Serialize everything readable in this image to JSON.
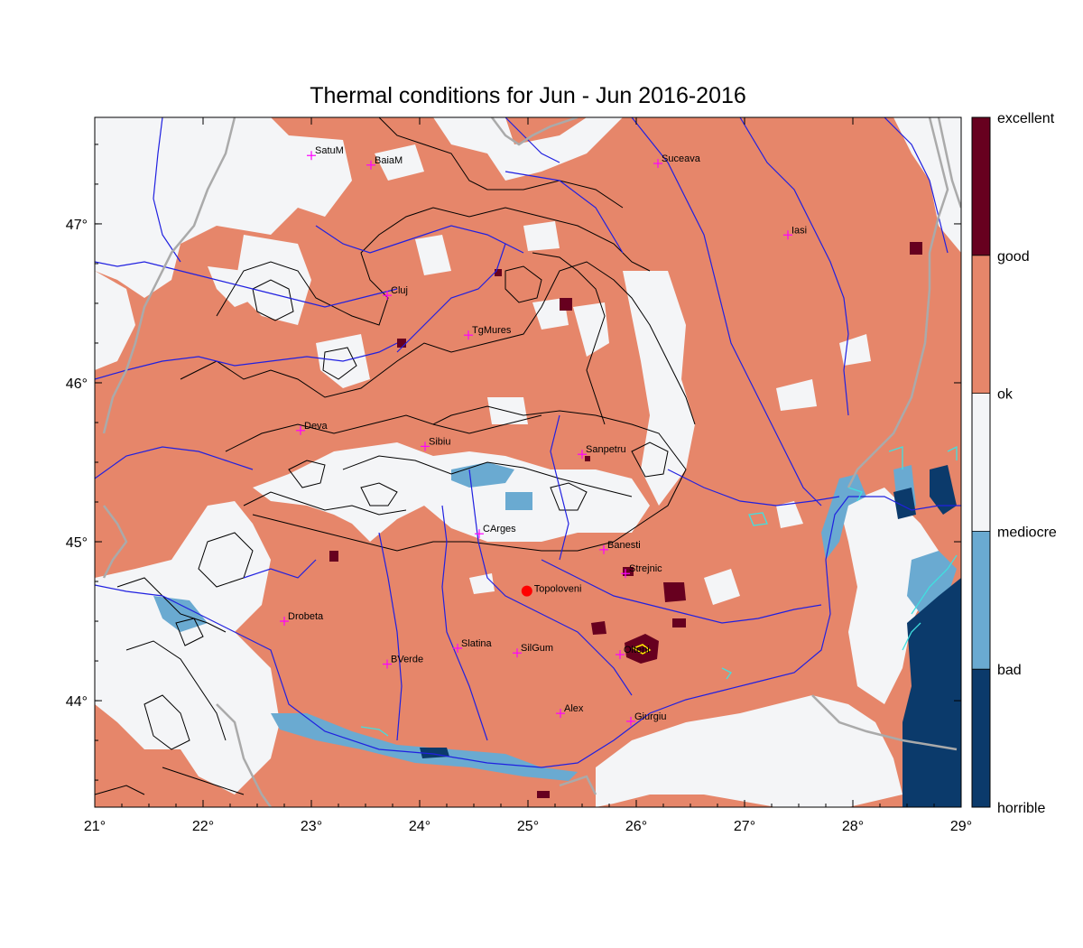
{
  "title": "Thermal conditions for Jun - Jun  2016-2016",
  "map": {
    "lon_range": [
      21,
      29
    ],
    "lat_range": [
      43.33,
      47.67
    ],
    "x_ticks": [
      "21°",
      "22°",
      "23°",
      "24°",
      "25°",
      "26°",
      "27°",
      "28°",
      "29°"
    ],
    "y_ticks": [
      "44°",
      "45°",
      "46°",
      "47°"
    ],
    "background_class": "good",
    "cities": [
      {
        "name": "SatuM",
        "lon": 23.0,
        "lat": 47.43
      },
      {
        "name": "BaiaM",
        "lon": 23.55,
        "lat": 47.37
      },
      {
        "name": "Suceava",
        "lon": 26.2,
        "lat": 47.38
      },
      {
        "name": "Iasi",
        "lon": 27.4,
        "lat": 46.93
      },
      {
        "name": "Cluj",
        "lon": 23.7,
        "lat": 46.55
      },
      {
        "name": "TgMures",
        "lon": 24.45,
        "lat": 46.3
      },
      {
        "name": "Deva",
        "lon": 22.9,
        "lat": 45.7
      },
      {
        "name": "Sibiu",
        "lon": 24.05,
        "lat": 45.6
      },
      {
        "name": "Sanpetru",
        "lon": 25.5,
        "lat": 45.55
      },
      {
        "name": "CArges",
        "lon": 24.55,
        "lat": 45.05
      },
      {
        "name": "Banesti",
        "lon": 25.7,
        "lat": 44.95
      },
      {
        "name": "Strejnic",
        "lon": 25.9,
        "lat": 44.8
      },
      {
        "name": "Drobeta",
        "lon": 22.75,
        "lat": 44.5
      },
      {
        "name": "Slatina",
        "lon": 24.35,
        "lat": 44.33
      },
      {
        "name": "SilGum",
        "lon": 24.9,
        "lat": 44.3
      },
      {
        "name": "BVerde",
        "lon": 23.7,
        "lat": 44.23
      },
      {
        "name": "Olteni",
        "lon": 25.85,
        "lat": 44.29
      },
      {
        "name": "Alex",
        "lon": 25.3,
        "lat": 43.92
      },
      {
        "name": "Giurgiu",
        "lon": 25.95,
        "lat": 43.87
      }
    ],
    "highlight_point": {
      "name": "Topoloveni",
      "lon": 24.99,
      "lat": 44.69
    }
  },
  "colorbar": {
    "levels": [
      {
        "label": "excellent",
        "color": "#67001f"
      },
      {
        "label": "good",
        "color": "#e6866a"
      },
      {
        "label": "ok",
        "color": "#f4f5f7"
      },
      {
        "label": "mediocre",
        "color": "#6aaad1"
      },
      {
        "label": "bad",
        "color": "#0b3a6b"
      },
      {
        "label": "horrible",
        "color": ""
      }
    ]
  },
  "colors": {
    "good": "#e6866a",
    "ok": "#f4f5f7",
    "mediocre": "#6aaad1",
    "bad": "#0b3a6b",
    "excellent": "#67001f",
    "river": "#2020e0",
    "contour": "#000000",
    "border": "#aaaaaa",
    "city_marker": "#ff00ff",
    "highlight": "#ff0000",
    "lake": "#40e0e0"
  }
}
